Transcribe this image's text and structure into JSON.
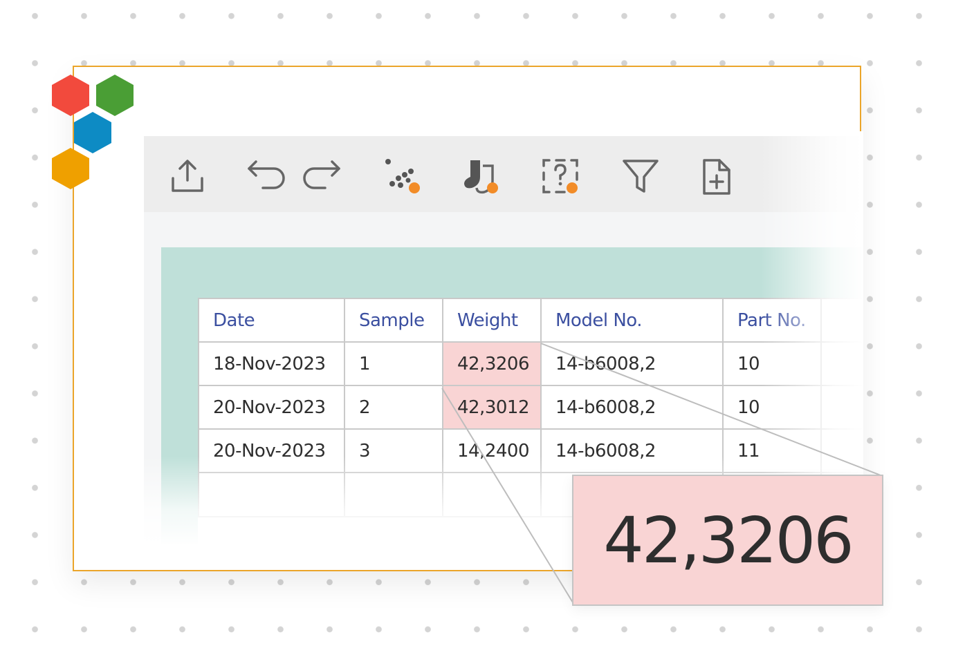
{
  "brand": {
    "logo_colors": [
      "#f24a3d",
      "#4a9e35",
      "#0d8bc4",
      "#efa000"
    ]
  },
  "toolbar": {
    "icons": [
      "share-export-icon",
      "undo-icon",
      "redo-icon",
      "scatter-dots-icon",
      "socks-icon",
      "unknown-box-icon",
      "filter-icon",
      "new-document-icon"
    ],
    "badge_color": "#f28c28"
  },
  "table": {
    "columns": [
      "Date",
      "Sample",
      "Weight",
      "Model No.",
      "Part No."
    ],
    "rows": [
      {
        "date": "18-Nov-2023",
        "sample": "1",
        "weight": "42,3206",
        "model": "14-b6008,2",
        "part": "10"
      },
      {
        "date": "20-Nov-2023",
        "sample": "2",
        "weight": "42,3012",
        "model": "14-b6008,2",
        "part": "10"
      },
      {
        "date": "20-Nov-2023",
        "sample": "3",
        "weight": "14,2400",
        "model": "14-b6008,2",
        "part": "11"
      }
    ]
  },
  "zoom": {
    "value": "42,3206"
  },
  "colors": {
    "frame": "#eba52a",
    "header_text": "#3b4fa0",
    "highlight": "#f9d4d4",
    "teal": "#bfe0d9"
  }
}
